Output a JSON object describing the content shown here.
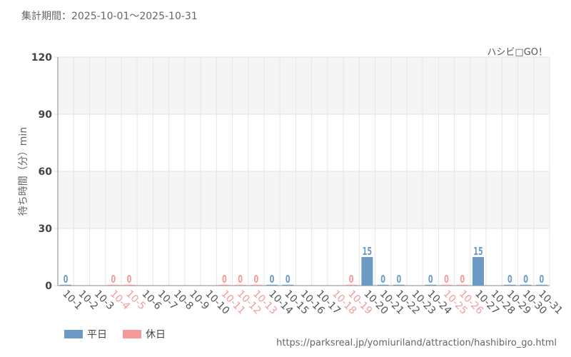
{
  "header": {
    "period": "集計期間：2025-10-01～2025-10-31",
    "attraction": "ハシビ□GO！"
  },
  "footer": {
    "url": "https://parksreal.jp/yomiuriland/attraction/hashibiro_go.html"
  },
  "legend": [
    {
      "label": "平日",
      "color": "#6b9ac4"
    },
    {
      "label": "休日",
      "color": "#f4999a"
    }
  ],
  "chart_data": {
    "type": "bar",
    "title": "",
    "xlabel": "",
    "ylabel": "待ち時間（分）min",
    "ylim": [
      0,
      120
    ],
    "yticks": [
      0,
      30,
      60,
      90,
      120
    ],
    "grid": true,
    "legend_position": "bottom-left",
    "categories": [
      "10-1",
      "10-2",
      "10-3",
      "10-4",
      "10-5",
      "10-6",
      "10-7",
      "10-8",
      "10-9",
      "10-10",
      "10-11",
      "10-12",
      "10-13",
      "10-14",
      "10-15",
      "10-16",
      "10-17",
      "10-18",
      "10-19",
      "10-20",
      "10-21",
      "10-22",
      "10-23",
      "10-24",
      "10-25",
      "10-26",
      "10-27",
      "10-28",
      "10-29",
      "10-30",
      "10-31"
    ],
    "day_type": [
      "weekday",
      "weekday",
      "weekday",
      "holiday",
      "holiday",
      "weekday",
      "weekday",
      "weekday",
      "weekday",
      "weekday",
      "holiday",
      "holiday",
      "holiday",
      "weekday",
      "weekday",
      "weekday",
      "weekday",
      "holiday",
      "holiday",
      "weekday",
      "weekday",
      "weekday",
      "weekday",
      "weekday",
      "holiday",
      "holiday",
      "weekday",
      "weekday",
      "weekday",
      "weekday",
      "weekday"
    ],
    "values": [
      0,
      null,
      null,
      0,
      0,
      null,
      null,
      null,
      null,
      null,
      0,
      0,
      0,
      0,
      0,
      null,
      null,
      null,
      0,
      15,
      0,
      0,
      null,
      0,
      0,
      0,
      15,
      null,
      0,
      0,
      0
    ],
    "colors": {
      "weekday": "#6b9ac4",
      "holiday": "#f4999a",
      "weekday_label": "#555555"
    }
  }
}
